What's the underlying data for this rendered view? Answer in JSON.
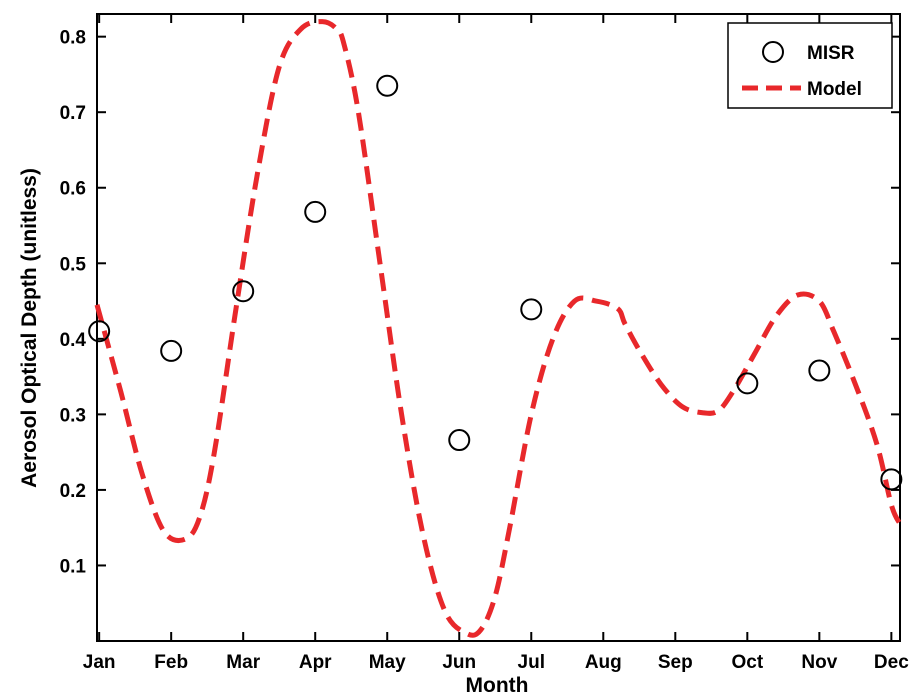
{
  "chart_data": {
    "type": "line",
    "title": "",
    "xlabel": "Month",
    "ylabel": "Aerosol Optical Depth (unitless)",
    "categories": [
      "Jan",
      "Feb",
      "Mar",
      "Apr",
      "May",
      "Jun",
      "Jul",
      "Aug",
      "Sep",
      "Oct",
      "Nov",
      "Dec"
    ],
    "xlim": [
      0.97,
      12.12
    ],
    "ylim": [
      0,
      0.83
    ],
    "yticks": [
      0.1,
      0.2,
      0.3,
      0.4,
      0.5,
      0.6,
      0.7,
      0.8
    ],
    "ytick_labels": [
      "0.1",
      "0.2",
      "0.3",
      "0.4",
      "0.5",
      "0.6",
      "0.7",
      "0.8"
    ],
    "grid": false,
    "legend_position": "top-right",
    "series": [
      {
        "name": "MISR",
        "style": "open-circle markers",
        "color": "#000000",
        "x": [
          1,
          2,
          3,
          4,
          5,
          6,
          7,
          10,
          11,
          12
        ],
        "values": [
          0.41,
          0.384,
          0.463,
          0.568,
          0.735,
          0.266,
          0.439,
          0.341,
          0.358,
          0.214
        ]
      },
      {
        "name": "Model",
        "style": "dashed line",
        "color": "#e8282b",
        "x": [
          0.97,
          1.3,
          1.6,
          1.9,
          2.2,
          2.4,
          2.6,
          2.9,
          3.2,
          3.5,
          3.8,
          4.1,
          4.3,
          4.4,
          4.6,
          4.9,
          5.2,
          5.5,
          5.8,
          6.1,
          6.3,
          6.5,
          6.7,
          7.0,
          7.3,
          7.6,
          7.9,
          8.2,
          8.3,
          8.5,
          8.8,
          9.1,
          9.4,
          9.6,
          9.8,
          10.1,
          10.4,
          10.7,
          11.0,
          11.2,
          11.5,
          11.8,
          12.0,
          12.12
        ],
        "values": [
          0.445,
          0.33,
          0.22,
          0.145,
          0.135,
          0.165,
          0.25,
          0.44,
          0.62,
          0.76,
          0.81,
          0.82,
          0.81,
          0.79,
          0.7,
          0.5,
          0.3,
          0.14,
          0.04,
          0.01,
          0.015,
          0.06,
          0.15,
          0.3,
          0.4,
          0.45,
          0.45,
          0.44,
          0.42,
          0.385,
          0.34,
          0.31,
          0.302,
          0.305,
          0.33,
          0.38,
          0.43,
          0.458,
          0.45,
          0.41,
          0.34,
          0.26,
          0.18,
          0.155
        ]
      }
    ]
  }
}
